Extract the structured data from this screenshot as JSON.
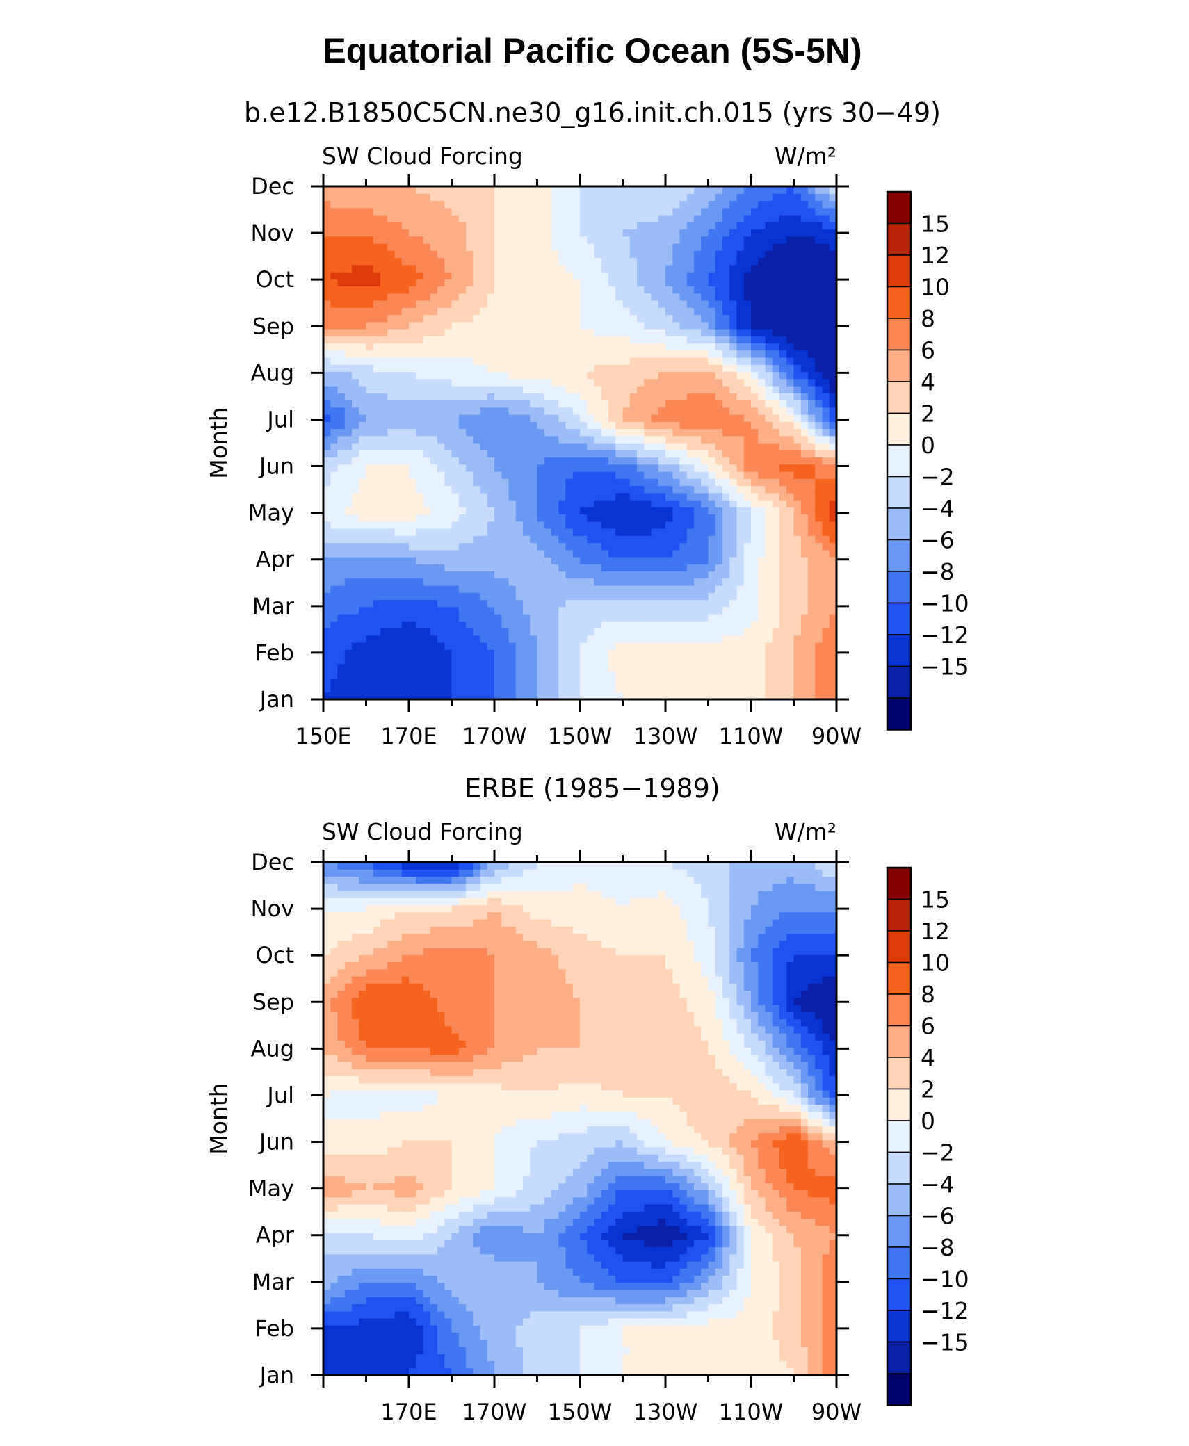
{
  "figure": {
    "title": "Equatorial Pacific Ocean (5S-5N)"
  },
  "colors": {
    "levels": [
      "#00006a",
      "#0a1fa8",
      "#0a34d2",
      "#1f52f0",
      "#4076f2",
      "#6b98f2",
      "#9bbcf7",
      "#c7dcfc",
      "#e8f2fe",
      "#fff0df",
      "#ffd4b8",
      "#fcaf86",
      "#fa8755",
      "#f5631f",
      "#dd3b0c",
      "#b82206",
      "#800000"
    ]
  },
  "chart_data": [
    {
      "type": "heatmap",
      "subtitle": "b.e12.B1850C5CN.ne30_g16.init.ch.015 (yrs 30−49)",
      "variable": "SW Cloud Forcing",
      "units": "W/m²",
      "ylabel": "Month",
      "xlabel": "",
      "x_tick_labels": [
        "150E",
        "170E",
        "170W",
        "150W",
        "130W",
        "110W",
        "90W"
      ],
      "y_tick_labels": [
        "Jan",
        "Feb",
        "Mar",
        "Apr",
        "May",
        "Jun",
        "Jul",
        "Aug",
        "Sep",
        "Oct",
        "Nov",
        "Dec"
      ],
      "xlim": [
        150,
        270
      ],
      "colorbar_labels": [
        "15",
        "12",
        "10",
        "8",
        "6",
        "4",
        "2",
        "0",
        "−2",
        "−4",
        "−6",
        "−8",
        "−10",
        "−12",
        "−15"
      ],
      "colorbar_levels": [
        -15,
        -12,
        -10,
        -8,
        -6,
        -4,
        -2,
        0,
        2,
        4,
        6,
        8,
        10,
        12,
        15
      ],
      "grid_lon": [
        150,
        160,
        170,
        180,
        190,
        200,
        210,
        220,
        230,
        240,
        250,
        260,
        270
      ],
      "values": [
        [
          -10,
          -12,
          -12,
          -10,
          -8,
          -4,
          0,
          2,
          4,
          3,
          3,
          6,
          10
        ],
        [
          -9,
          -11,
          -12,
          -10,
          -8,
          -4,
          0,
          3,
          3,
          3,
          3,
          6,
          10
        ],
        [
          -7,
          -8,
          -9,
          -8,
          -6,
          -3,
          -1,
          -1,
          -1,
          -1,
          1,
          5,
          8
        ],
        [
          -4,
          -5,
          -4,
          -3,
          -3,
          -3,
          -6,
          -8,
          -8,
          -6,
          1,
          5,
          8
        ],
        [
          1,
          3,
          3,
          1,
          -2,
          -6,
          -10,
          -12,
          -11,
          -7,
          0,
          6,
          14
        ],
        [
          -1,
          2,
          2,
          -1,
          -4,
          -6,
          -8,
          -7,
          -3,
          2,
          9,
          11,
          9
        ],
        [
          -9,
          -4,
          -3,
          -4,
          -6,
          -4,
          0,
          6,
          9,
          10,
          8,
          3,
          -10
        ],
        [
          -3,
          -1,
          0,
          1,
          2,
          3,
          4,
          5,
          6,
          7,
          2,
          -8,
          -15
        ],
        [
          8,
          8,
          6,
          4,
          3,
          3,
          2,
          1,
          -1,
          -4,
          -12,
          -15,
          -15
        ],
        [
          12,
          13,
          11,
          8,
          4,
          3,
          2,
          -1,
          -4,
          -8,
          -13,
          -15,
          -14
        ],
        [
          10,
          10,
          8,
          7,
          4,
          3,
          0,
          -2,
          -3,
          -6,
          -10,
          -12,
          -11
        ],
        [
          7,
          6,
          6,
          5,
          4,
          3,
          0,
          0,
          0,
          -3,
          -6,
          -8,
          0
        ]
      ]
    },
    {
      "type": "heatmap",
      "subtitle": "ERBE (1985−1989)",
      "variable": "SW Cloud Forcing",
      "units": "W/m²",
      "ylabel": "Month",
      "xlabel": "",
      "x_tick_labels": [
        "170E",
        "170W",
        "150W",
        "130W",
        "110W",
        "90W"
      ],
      "y_tick_labels": [
        "Jan",
        "Feb",
        "Mar",
        "Apr",
        "May",
        "Jun",
        "Jul",
        "Aug",
        "Sep",
        "Oct",
        "Nov",
        "Dec"
      ],
      "xlim": [
        150,
        270
      ],
      "colorbar_labels": [
        "15",
        "12",
        "10",
        "8",
        "6",
        "4",
        "2",
        "0",
        "−2",
        "−4",
        "−6",
        "−8",
        "−10",
        "−12",
        "−15"
      ],
      "colorbar_levels": [
        -15,
        -12,
        -10,
        -8,
        -6,
        -4,
        -2,
        0,
        2,
        4,
        6,
        8,
        10,
        12,
        15
      ],
      "grid_lon": [
        150,
        160,
        170,
        180,
        190,
        200,
        210,
        220,
        230,
        240,
        250,
        260,
        270
      ],
      "values": [
        [
          -12,
          -12,
          -10,
          -8,
          -4,
          -1,
          0,
          2,
          2,
          2,
          3,
          4,
          10
        ],
        [
          -10,
          -11,
          -12,
          -6,
          -3,
          -1,
          0,
          2,
          2,
          3,
          3,
          5,
          10
        ],
        [
          -3,
          -6,
          -6,
          -3,
          -2,
          -4,
          -6,
          -8,
          -8,
          -4,
          2,
          5,
          10
        ],
        [
          -1,
          0,
          1,
          -2,
          -6,
          -4,
          -8,
          -12,
          -14,
          -10,
          2,
          6,
          8
        ],
        [
          8,
          6,
          7,
          4,
          2,
          -1,
          -3,
          -8,
          -8,
          -3,
          6,
          10,
          11
        ],
        [
          2,
          3,
          4,
          4,
          2,
          0,
          -1,
          -2,
          2,
          4,
          8,
          12,
          6
        ],
        [
          2,
          1,
          1,
          2,
          3,
          4,
          3,
          4,
          4,
          6,
          4,
          0,
          -10
        ],
        [
          6,
          10,
          10,
          11,
          8,
          6,
          6,
          6,
          6,
          4,
          0,
          -6,
          -12
        ],
        [
          7,
          12,
          12,
          9,
          8,
          7,
          6,
          5,
          5,
          3,
          -4,
          -12,
          -15
        ],
        [
          4,
          6,
          8,
          9,
          8,
          7,
          5,
          4,
          4,
          1,
          -6,
          -10,
          -10
        ],
        [
          2,
          2,
          4,
          4,
          6,
          3,
          3,
          2,
          3,
          0,
          -4,
          -6,
          -6
        ],
        [
          -6,
          -8,
          -12,
          -13,
          -4,
          0,
          1,
          1,
          0,
          -1,
          -3,
          -3,
          0
        ]
      ]
    }
  ]
}
